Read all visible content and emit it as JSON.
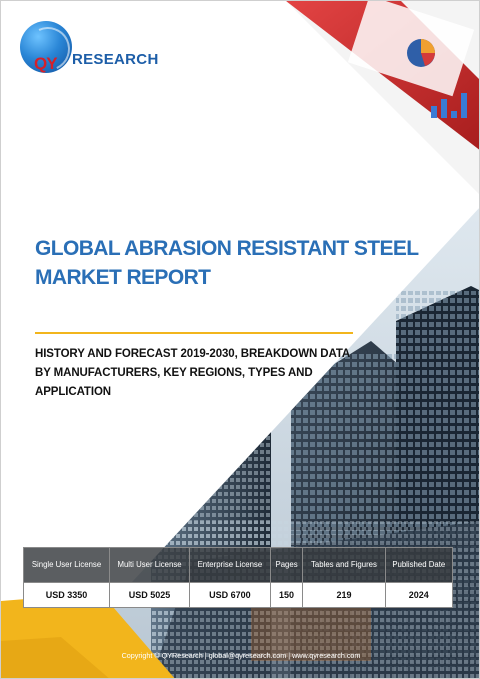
{
  "logo": {
    "mark": "QY",
    "name": "RESEARCH"
  },
  "report": {
    "title": "GLOBAL ABRASION RESISTANT STEEL MARKET REPORT",
    "subtitle": "HISTORY AND FORECAST 2019-2030, BREAKDOWN DATA BY MANUFACTURERS, KEY REGIONS, TYPES AND APPLICATION"
  },
  "table": {
    "headers": [
      "Single User License",
      "Multi User License",
      "Enterprise License",
      "Pages",
      "Tables and Figures",
      "Published Date"
    ],
    "values": [
      "USD 3350",
      "USD 5025",
      "USD 6700",
      "150",
      "219",
      "2024"
    ]
  },
  "footer": {
    "text": "Copyright © QYResearch | global@qyresearch.com | www.qyresearch.com"
  },
  "colors": {
    "title": "#2a6fb6",
    "accent_yellow": "#f2b51c",
    "accent_red": "#d4202a",
    "logo_blue": "#1d5ea8"
  },
  "icons": [
    "globe-logo-icon"
  ]
}
